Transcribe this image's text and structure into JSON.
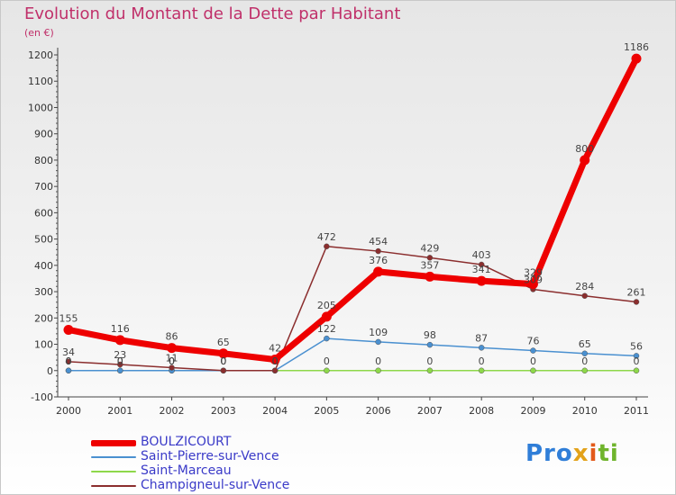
{
  "chart_data": {
    "type": "line",
    "title": "Evolution du Montant de la Dette par Habitant",
    "subtitle": "(en €)",
    "x": [
      "2000",
      "2001",
      "2002",
      "2003",
      "2004",
      "2005",
      "2006",
      "2007",
      "2008",
      "2009",
      "2010",
      "2011"
    ],
    "ylim": [
      -100,
      1200
    ],
    "yticks": [
      -100,
      0,
      100,
      200,
      300,
      400,
      500,
      600,
      700,
      800,
      900,
      1000,
      1100,
      1200
    ],
    "grid": false,
    "legend_position": "bottom-left",
    "series": [
      {
        "name": "BOULZICOURT",
        "color": "#ee0000",
        "values": [
          155,
          116,
          86,
          65,
          42,
          205,
          376,
          357,
          341,
          329,
          800,
          1186
        ],
        "labels": [
          "155",
          "116",
          "86",
          "65",
          "42",
          "205",
          "376",
          "357",
          "341",
          "329",
          "800",
          "1186"
        ]
      },
      {
        "name": "Saint-Pierre-sur-Vence",
        "color": "#4a90d0",
        "values": [
          0,
          0,
          0,
          0,
          0,
          122,
          109,
          98,
          87,
          76,
          65,
          56
        ],
        "labels": [
          "0",
          "0",
          "0",
          "0",
          "0",
          "122",
          "109",
          "98",
          "87",
          "76",
          "65",
          "56"
        ]
      },
      {
        "name": "Saint-Marceau",
        "color": "#8ed84a",
        "values": [
          0,
          0,
          0,
          0,
          0,
          0,
          0,
          0,
          0,
          0,
          0,
          0
        ],
        "labels": [
          "0",
          "0",
          "0",
          "0",
          "0",
          "0",
          "0",
          "0",
          "0",
          "0",
          "0",
          "0"
        ]
      },
      {
        "name": "Champigneul-sur-Vence",
        "color": "#8b2e2e",
        "values": [
          34,
          23,
          11,
          0,
          0,
          472,
          454,
          429,
          403,
          309,
          284,
          261
        ],
        "labels": [
          "34",
          "23",
          "11",
          "0",
          "0",
          "472",
          "454",
          "429",
          "403",
          "309",
          "284",
          "261"
        ]
      }
    ]
  },
  "logo_text": [
    "Pro",
    "x",
    "i",
    "ti"
  ]
}
